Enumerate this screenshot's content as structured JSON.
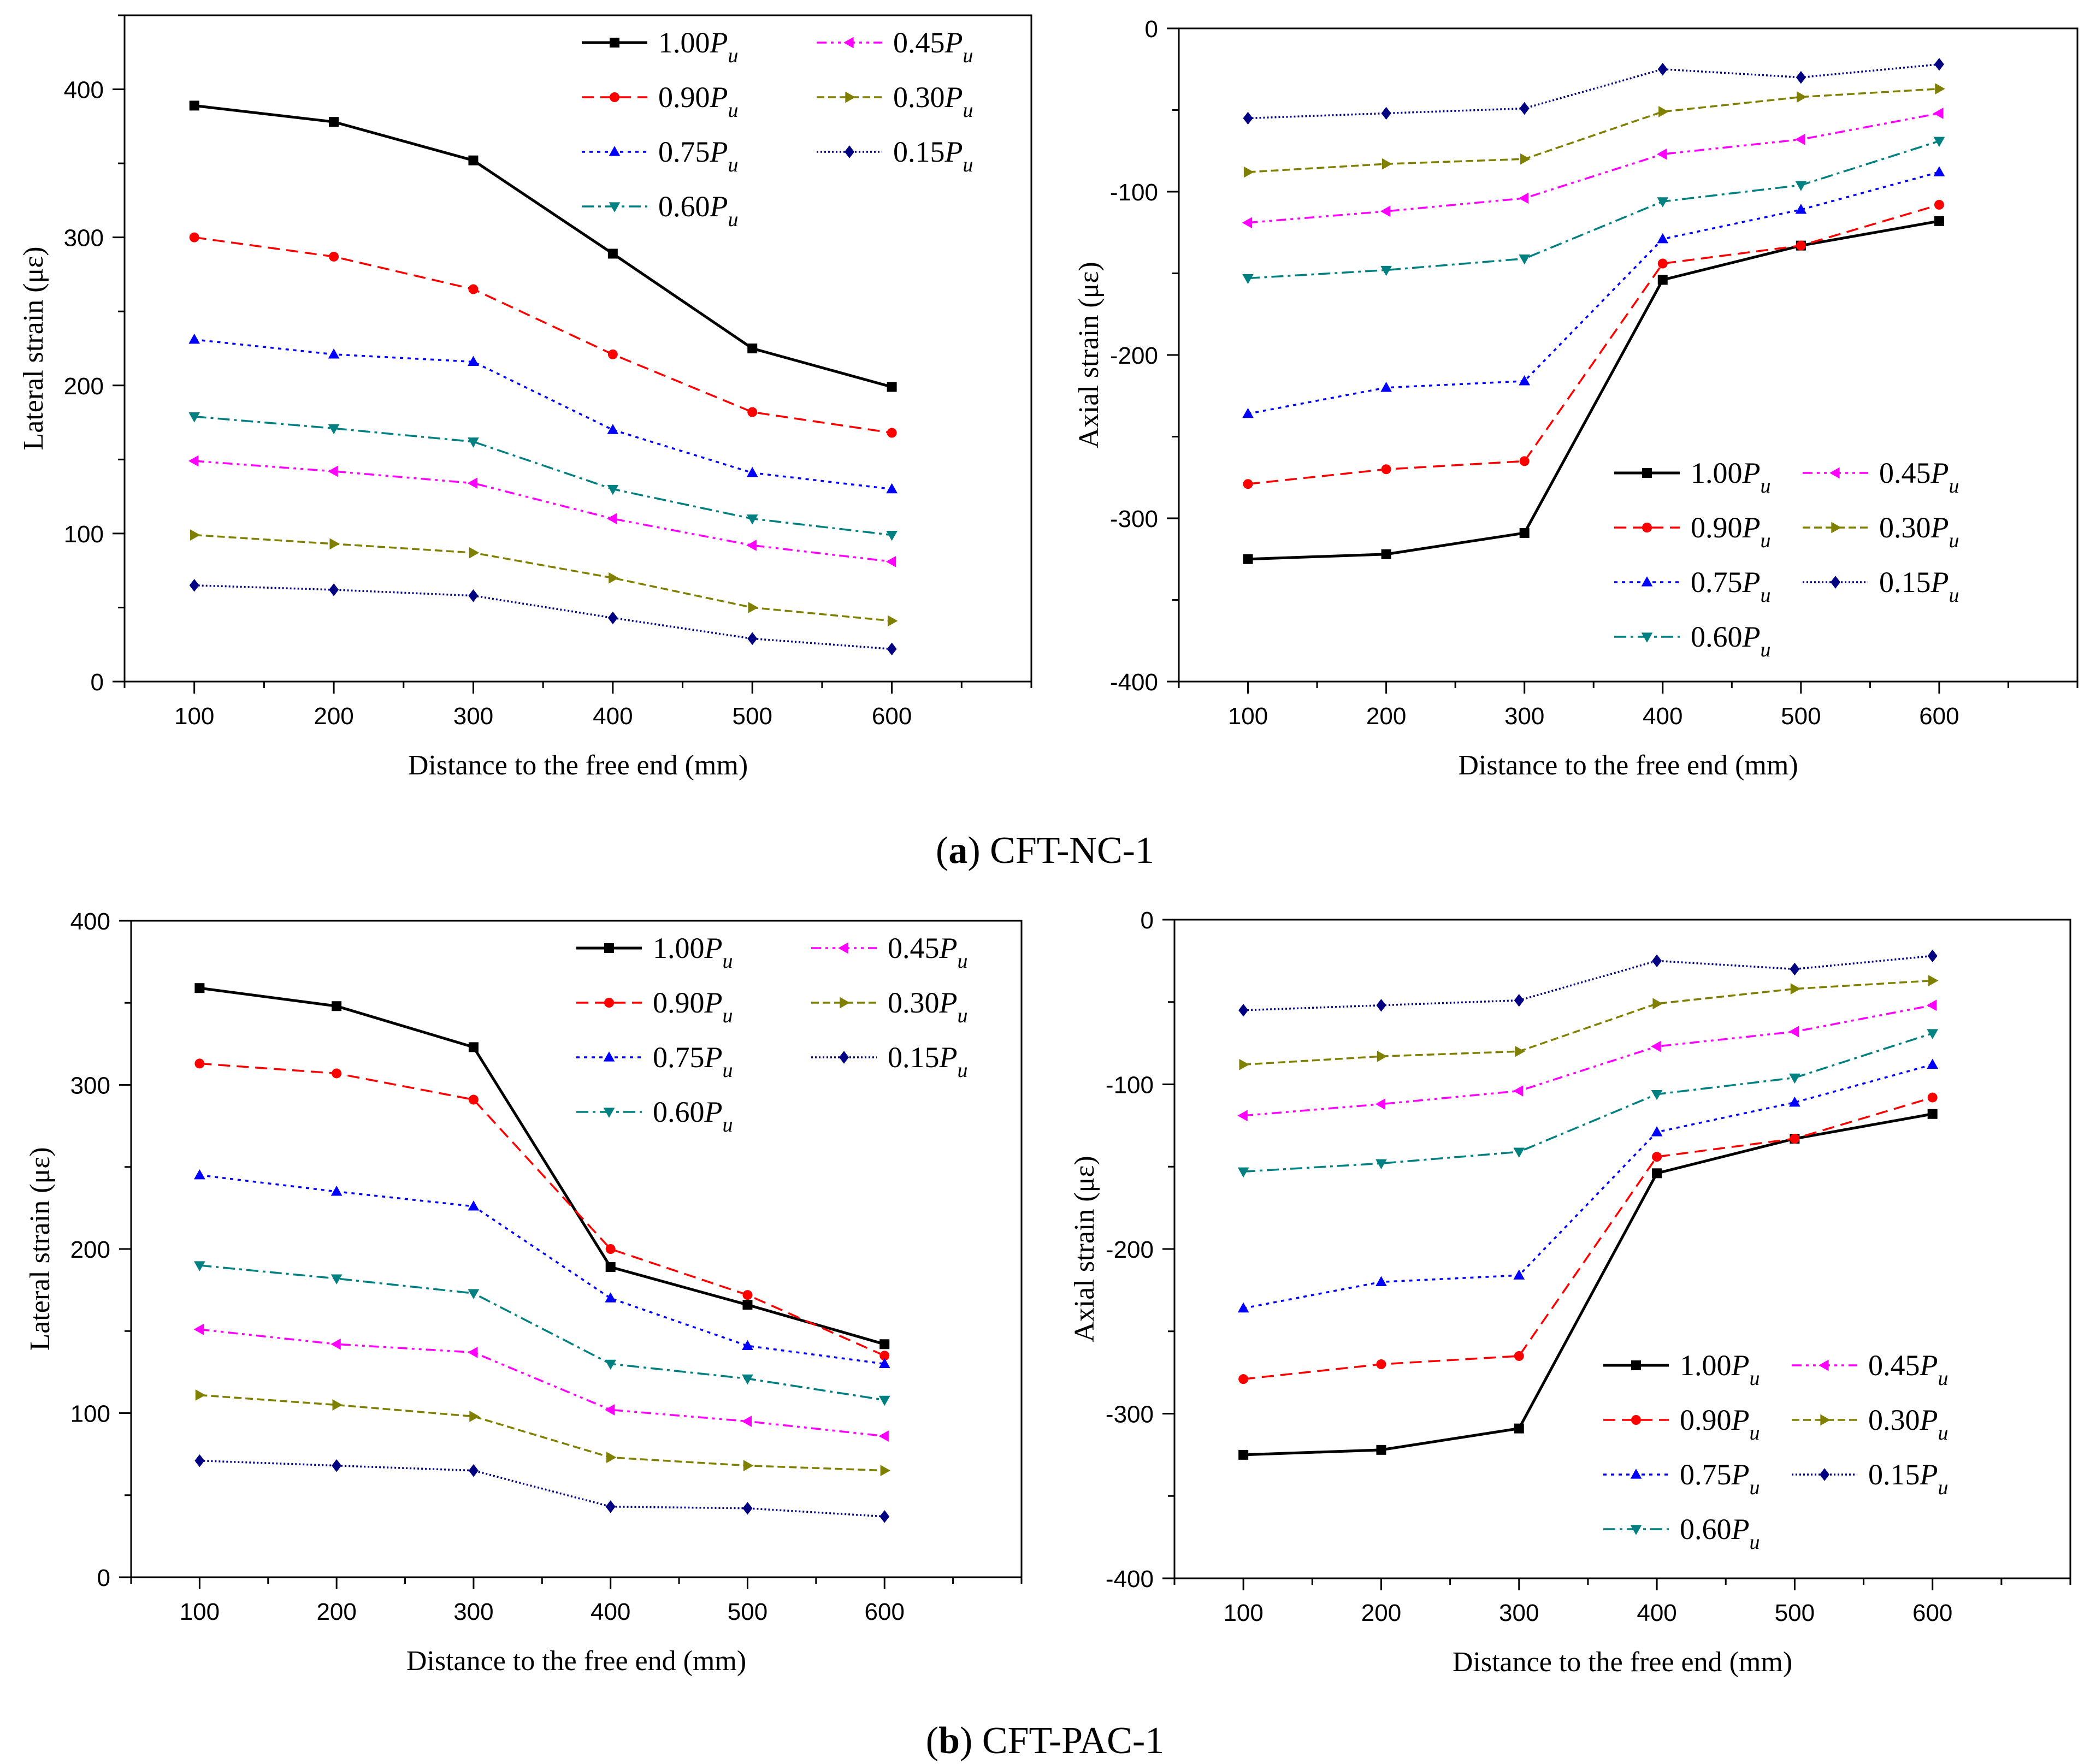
{
  "figure": {
    "captions": [
      {
        "letter": "a",
        "rest": " CFT-NC-1"
      },
      {
        "letter": "b",
        "rest": " CFT-PAC-1"
      }
    ]
  },
  "legend_labels": [
    {
      "coef": "1.00",
      "sym": "P",
      "sub": "u"
    },
    {
      "coef": "0.45",
      "sym": "P",
      "sub": "u"
    },
    {
      "coef": "0.90",
      "sym": "P",
      "sub": "u"
    },
    {
      "coef": "0.30",
      "sym": "P",
      "sub": "u"
    },
    {
      "coef": "0.75",
      "sym": "P",
      "sub": "u"
    },
    {
      "coef": "0.15",
      "sym": "P",
      "sub": "u"
    },
    {
      "coef": "0.60",
      "sym": "P",
      "sub": "u"
    }
  ],
  "series_styles": [
    {
      "name": "1.00Pu",
      "color": "#000000",
      "marker": "square",
      "dash": ""
    },
    {
      "name": "0.90Pu",
      "color": "#ff0000",
      "marker": "circle",
      "dash": "22,12"
    },
    {
      "name": "0.75Pu",
      "color": "#0000ff",
      "marker": "triangle-up",
      "dash": "6,8"
    },
    {
      "name": "0.60Pu",
      "color": "#008080",
      "marker": "triangle-down",
      "dash": "22,8,5,8"
    },
    {
      "name": "0.45Pu",
      "color": "#ff00ff",
      "marker": "triangle-left",
      "dash": "18,8,5,8,5,8"
    },
    {
      "name": "0.30Pu",
      "color": "#808000",
      "marker": "triangle-right",
      "dash": "14,7"
    },
    {
      "name": "0.15Pu",
      "color": "#000080",
      "marker": "diamond",
      "dash": "3,4"
    }
  ],
  "chart_data": [
    {
      "type": "line",
      "title": "",
      "xlabel": "Distance to the free end (mm)",
      "ylabel": "Lateral strain (με)",
      "x": [
        100,
        200,
        300,
        400,
        500,
        600
      ],
      "xlim": [
        50,
        700
      ],
      "ylim": [
        0,
        450
      ],
      "xticks": [
        100,
        200,
        300,
        400,
        500,
        600
      ],
      "yticks": [
        0,
        100,
        200,
        300,
        400
      ],
      "legend_position": "top-right",
      "series": [
        {
          "name": "1.00Pu",
          "values": [
            389,
            378,
            352,
            289,
            225,
            199
          ]
        },
        {
          "name": "0.90Pu",
          "values": [
            300,
            287,
            265,
            221,
            182,
            168
          ]
        },
        {
          "name": "0.75Pu",
          "values": [
            231,
            221,
            216,
            170,
            141,
            130
          ]
        },
        {
          "name": "0.60Pu",
          "values": [
            179,
            171,
            162,
            130,
            110,
            99
          ]
        },
        {
          "name": "0.45Pu",
          "values": [
            149,
            142,
            134,
            110,
            92,
            81
          ]
        },
        {
          "name": "0.30Pu",
          "values": [
            99,
            93,
            87,
            70,
            50,
            41
          ]
        },
        {
          "name": "0.15Pu",
          "values": [
            65,
            62,
            58,
            43,
            29,
            22
          ]
        }
      ]
    },
    {
      "type": "line",
      "title": "",
      "xlabel": "Distance to the free end (mm)",
      "ylabel": "Axial strain (με)",
      "x": [
        100,
        200,
        300,
        400,
        500,
        600
      ],
      "xlim": [
        50,
        700
      ],
      "ylim": [
        -400,
        0
      ],
      "xticks": [
        100,
        200,
        300,
        400,
        500,
        600
      ],
      "yticks": [
        0,
        -100,
        -200,
        -300,
        -400
      ],
      "legend_position": "bottom-right",
      "series": [
        {
          "name": "1.00Pu",
          "values": [
            -325,
            -322,
            -309,
            -154,
            -133,
            -118
          ]
        },
        {
          "name": "0.90Pu",
          "values": [
            -279,
            -270,
            -265,
            -144,
            -133,
            -108
          ]
        },
        {
          "name": "0.75Pu",
          "values": [
            -236,
            -220,
            -216,
            -129,
            -111,
            -88
          ]
        },
        {
          "name": "0.60Pu",
          "values": [
            -153,
            -148,
            -141,
            -106,
            -96,
            -69
          ]
        },
        {
          "name": "0.45Pu",
          "values": [
            -119,
            -112,
            -104,
            -77,
            -68,
            -52
          ]
        },
        {
          "name": "0.30Pu",
          "values": [
            -88,
            -83,
            -80,
            -51,
            -42,
            -37
          ]
        },
        {
          "name": "0.15Pu",
          "values": [
            -55,
            -52,
            -49,
            -25,
            -30,
            -22
          ]
        }
      ]
    },
    {
      "type": "line",
      "title": "",
      "xlabel": "Distance to the free end (mm)",
      "ylabel": "Lateral strain (με)",
      "x": [
        100,
        200,
        300,
        400,
        500,
        600
      ],
      "xlim": [
        50,
        700
      ],
      "ylim": [
        0,
        400
      ],
      "xticks": [
        100,
        200,
        300,
        400,
        500,
        600
      ],
      "yticks": [
        0,
        100,
        200,
        300,
        400
      ],
      "legend_position": "top-right",
      "series": [
        {
          "name": "1.00Pu",
          "values": [
            359,
            348,
            323,
            189,
            166,
            142
          ]
        },
        {
          "name": "0.90Pu",
          "values": [
            313,
            307,
            291,
            200,
            172,
            135
          ]
        },
        {
          "name": "0.75Pu",
          "values": [
            245,
            235,
            226,
            170,
            141,
            130
          ]
        },
        {
          "name": "0.60Pu",
          "values": [
            190,
            182,
            173,
            130,
            121,
            108
          ]
        },
        {
          "name": "0.45Pu",
          "values": [
            151,
            142,
            137,
            102,
            95,
            86
          ]
        },
        {
          "name": "0.30Pu",
          "values": [
            111,
            105,
            98,
            73,
            68,
            65
          ]
        },
        {
          "name": "0.15Pu",
          "values": [
            71,
            68,
            65,
            43,
            42,
            37
          ]
        }
      ]
    },
    {
      "type": "line",
      "title": "",
      "xlabel": "Distance to the free end (mm)",
      "ylabel": "Axial strain (με)",
      "x": [
        100,
        200,
        300,
        400,
        500,
        600
      ],
      "xlim": [
        50,
        700
      ],
      "ylim": [
        -400,
        0
      ],
      "xticks": [
        100,
        200,
        300,
        400,
        500,
        600
      ],
      "yticks": [
        0,
        -100,
        -200,
        -300,
        -400
      ],
      "legend_position": "bottom-right",
      "series": [
        {
          "name": "1.00Pu",
          "values": [
            -325,
            -322,
            -309,
            -154,
            -133,
            -118
          ]
        },
        {
          "name": "0.90Pu",
          "values": [
            -279,
            -270,
            -265,
            -144,
            -133,
            -108
          ]
        },
        {
          "name": "0.75Pu",
          "values": [
            -236,
            -220,
            -216,
            -129,
            -111,
            -88
          ]
        },
        {
          "name": "0.60Pu",
          "values": [
            -153,
            -148,
            -141,
            -106,
            -96,
            -69
          ]
        },
        {
          "name": "0.45Pu",
          "values": [
            -119,
            -112,
            -104,
            -77,
            -68,
            -52
          ]
        },
        {
          "name": "0.30Pu",
          "values": [
            -88,
            -83,
            -80,
            -51,
            -42,
            -37
          ]
        },
        {
          "name": "0.15Pu",
          "values": [
            -55,
            -52,
            -49,
            -25,
            -30,
            -22
          ]
        }
      ]
    }
  ]
}
